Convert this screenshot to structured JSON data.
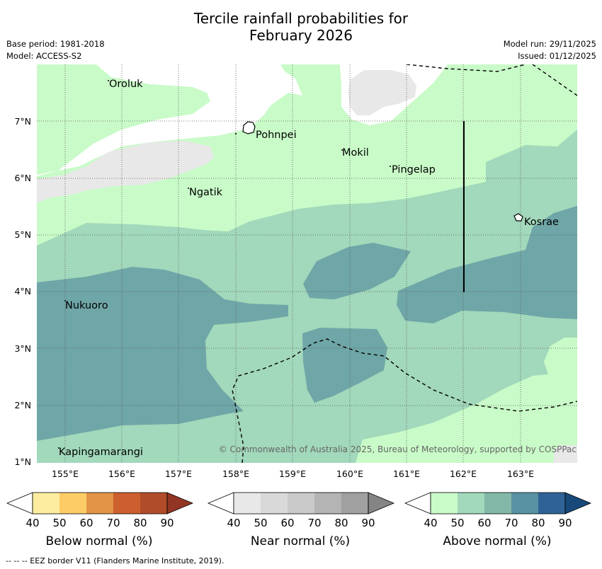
{
  "title_line1": "Tercile rainfall probabilities for",
  "title_line2": "February 2026",
  "meta_left": {
    "base_period": "Base period: 1981-2018",
    "model": "Model: ACCESS-S2"
  },
  "meta_right": {
    "model_run": "Model run: 29/11/2025",
    "issued": "Issued: 01/12/2025"
  },
  "map": {
    "lat_ticks": [
      "7°N",
      "6°N",
      "5°N",
      "4°N",
      "3°N",
      "2°N",
      "1°N"
    ],
    "lon_ticks": [
      "155°E",
      "156°E",
      "157°E",
      "158°E",
      "159°E",
      "160°E",
      "161°E",
      "162°E",
      "163°E"
    ],
    "places": [
      "Oroluk",
      "Pohnpei",
      "Mokil",
      "Pingelap",
      "Ngatik",
      "Kosrae",
      "Nukuoro",
      "Kapingamarangi"
    ],
    "credit": "© Commonwealth of Australia 2025, Bureau of Meteorology, supported by COSPPac"
  },
  "legend": {
    "ticks": [
      "40",
      "50",
      "60",
      "70",
      "80",
      "90"
    ],
    "below": {
      "caption": "Below normal (%)",
      "colors": [
        "#ffffff",
        "#fdeda0",
        "#fdcc67",
        "#e39447",
        "#cd5f2e",
        "#b14c2a",
        "#933524"
      ]
    },
    "near": {
      "caption": "Near normal (%)",
      "colors": [
        "#ffffff",
        "#e8e8e8",
        "#d9d9d9",
        "#cacaca",
        "#b4b4b4",
        "#a0a0a0",
        "#858585"
      ]
    },
    "above": {
      "caption": "Above normal (%)",
      "colors": [
        "#ffffff",
        "#c9fbc8",
        "#a2d8bb",
        "#83b8a8",
        "#5892a2",
        "#2f6398",
        "#174a7a"
      ]
    }
  },
  "footer": "--  --  -- EEZ border V11 (Flanders Marine Institute, 2019)."
}
